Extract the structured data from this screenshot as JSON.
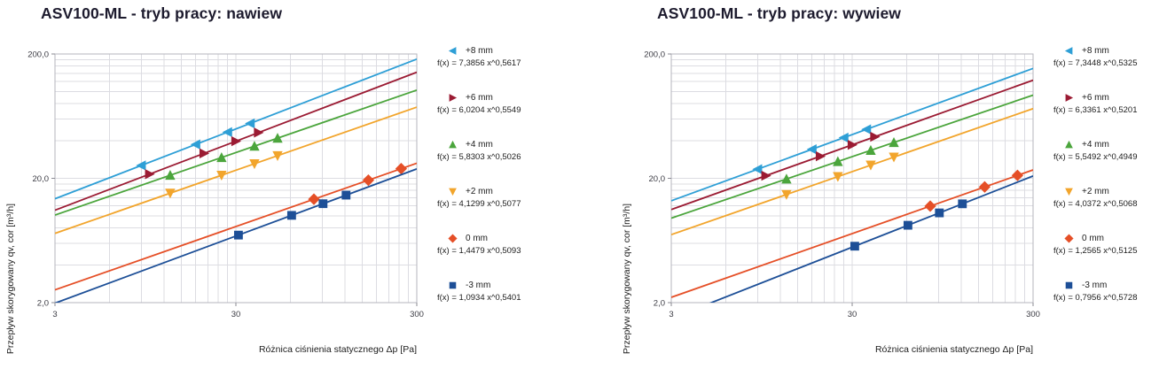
{
  "page": {
    "background": "#ffffff"
  },
  "chart_data": [
    {
      "type": "line",
      "title": "ASV100-ML - tryb pracy: nawiew",
      "xlabel": "Różnica ciśnienia statycznego Δp [Pa]",
      "ylabel": "Przepływ skorygowany qv, cor [m³/h]",
      "x_scale": "log",
      "y_scale": "log",
      "xlim": [
        3,
        300
      ],
      "ylim": [
        2,
        200
      ],
      "x_ticks": [
        "3",
        "30",
        "300"
      ],
      "y_ticks": [
        "200,0",
        "20,0",
        "2,0"
      ],
      "grid": true,
      "legend_position": "right",
      "series": [
        {
          "name": "+8 mm",
          "equation": "f(x) = 7,3856 x^0,5617",
          "a": 7.3856,
          "b": 0.5617,
          "marker": "triangle-left",
          "color": "#2e9fd6",
          "marker_x": [
            9,
            18,
            27,
            36
          ]
        },
        {
          "name": "+6 mm",
          "equation": "f(x) = 6,0204 x^0,5549",
          "a": 6.0204,
          "b": 0.5549,
          "marker": "triangle-right",
          "color": "#9b1b33",
          "marker_x": [
            10,
            20,
            30,
            40
          ]
        },
        {
          "name": "+4 mm",
          "equation": "f(x) = 5,8303 x^0,5026",
          "a": 5.8303,
          "b": 0.5026,
          "marker": "triangle-up",
          "color": "#4ba53c",
          "marker_x": [
            13,
            25,
            38,
            51
          ]
        },
        {
          "name": "+2 mm",
          "equation": "f(x) = 4,1299 x^0,5077",
          "a": 4.1299,
          "b": 0.5077,
          "marker": "triangle-down",
          "color": "#f2a52c",
          "marker_x": [
            13,
            25,
            38,
            51
          ]
        },
        {
          "name": "0 mm",
          "equation": "f(x) = 1,4479 x^0,5093",
          "a": 1.4479,
          "b": 0.5093,
          "marker": "diamond",
          "color": "#e54f27",
          "marker_x": [
            81,
            162,
            246
          ]
        },
        {
          "name": "-3 mm",
          "equation": "f(x) = 1,0934 x^0,5401",
          "a": 1.0934,
          "b": 0.5401,
          "marker": "square",
          "color": "#1d4f97",
          "marker_x": [
            31,
            61,
            91,
            122
          ]
        }
      ]
    },
    {
      "type": "line",
      "title": "ASV100-ML - tryb pracy: wywiew",
      "xlabel": "Różnica ciśnienia statycznego Δp [Pa]",
      "ylabel": "Przepływ skorygowany qv, cor [m³/h]",
      "x_scale": "log",
      "y_scale": "log",
      "xlim": [
        3,
        300
      ],
      "ylim": [
        2,
        200
      ],
      "x_ticks": [
        "3",
        "30",
        "300"
      ],
      "y_ticks": [
        "200,0",
        "20,0",
        "2,0"
      ],
      "grid": true,
      "legend_position": "right",
      "series": [
        {
          "name": "+8 mm",
          "equation": "f(x) = 7,3448 x^0,5325",
          "a": 7.3448,
          "b": 0.5325,
          "marker": "triangle-left",
          "color": "#2e9fd6",
          "marker_x": [
            9,
            18,
            27,
            36
          ]
        },
        {
          "name": "+6 mm",
          "equation": "f(x) = 6,3361 x^0,5201",
          "a": 6.3361,
          "b": 0.5201,
          "marker": "triangle-right",
          "color": "#9b1b33",
          "marker_x": [
            10,
            20,
            30,
            40
          ]
        },
        {
          "name": "+4 mm",
          "equation": "f(x) = 5,5492 x^0,4949",
          "a": 5.5492,
          "b": 0.4949,
          "marker": "triangle-up",
          "color": "#4ba53c",
          "marker_x": [
            13,
            25,
            38,
            51
          ]
        },
        {
          "name": "+2 mm",
          "equation": "f(x) = 4,0372 x^0,5068",
          "a": 4.0372,
          "b": 0.5068,
          "marker": "triangle-down",
          "color": "#f2a52c",
          "marker_x": [
            13,
            25,
            38,
            51
          ]
        },
        {
          "name": "0 mm",
          "equation": "f(x) = 1,2565 x^0,5125",
          "a": 1.2565,
          "b": 0.5125,
          "marker": "diamond",
          "color": "#e54f27",
          "marker_x": [
            81,
            162,
            246
          ]
        },
        {
          "name": "-3 mm",
          "equation": "f(x) = 0,7956 x^0,5728",
          "a": 0.7956,
          "b": 0.5728,
          "marker": "square",
          "color": "#1d4f97",
          "marker_x": [
            31,
            61,
            91,
            122
          ]
        }
      ]
    }
  ],
  "style": {
    "grid_color": "#dcdce2",
    "border_color": "#b6b6be",
    "tick_text_color": "#3c3c44",
    "title_color": "#1d1b2e"
  }
}
